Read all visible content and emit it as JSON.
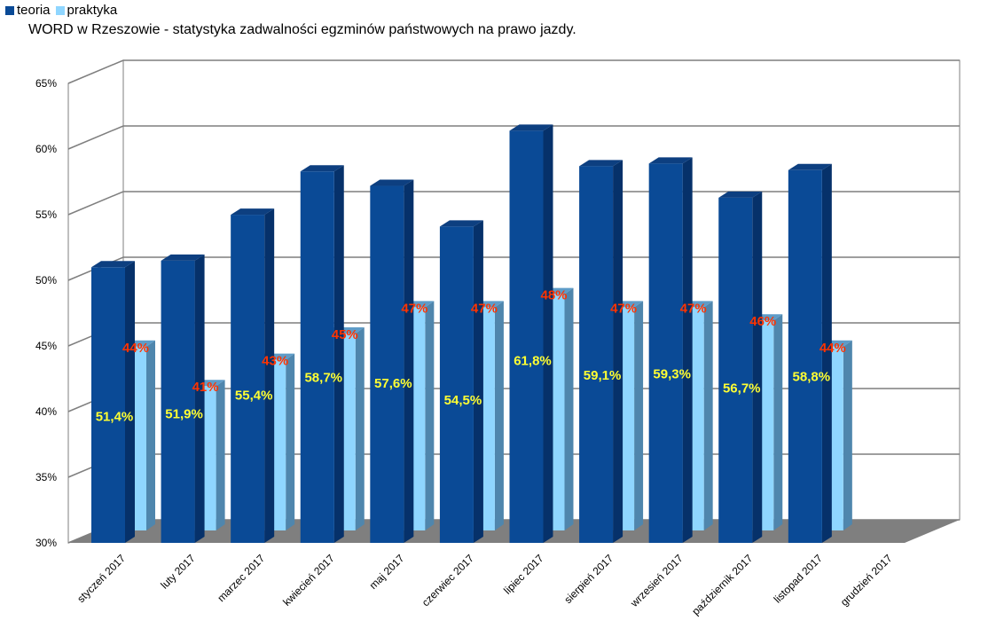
{
  "legend": {
    "teoria_label": "teoria",
    "praktyka_label": "praktyka"
  },
  "colors": {
    "teoria": "#0a4a96",
    "teoria_side": "#06316a",
    "teoria_top": "#0d3f80",
    "praktyka": "#8fd6ff",
    "praktyka_side": "#4f86ad",
    "praktyka_top": "#5e9cc8",
    "teoria_label": "#ffff33",
    "praktyka_label": "#ff3300",
    "floor": "#7f7f7f",
    "grid": "#7f7f7f"
  },
  "chart_data": {
    "type": "bar",
    "title": "WORD w Rzeszowie - statystyka zadwalności egzminów państwowych na prawo jazdy.",
    "categories": [
      "styczeń 2017",
      "luty 2017",
      "marzec 2017",
      "kwiecień 2017",
      "maj 2017",
      "czerwiec 2017",
      "lipiec 2017",
      "sierpień 2017",
      "wrzesień 2017",
      "październik 2017",
      "listopad 2017",
      "grudzień 2017"
    ],
    "series": [
      {
        "name": "teoria",
        "values": [
          51.4,
          51.9,
          55.4,
          58.7,
          57.6,
          54.5,
          61.8,
          59.1,
          59.3,
          56.7,
          58.8,
          null
        ],
        "labels": [
          "51,4%",
          "51,9%",
          "55,4%",
          "58,7%",
          "57,6%",
          "54,5%",
          "61,8%",
          "59,1%",
          "59,3%",
          "56,7%",
          "58,8%",
          null
        ]
      },
      {
        "name": "praktyka",
        "values": [
          44,
          41,
          43,
          45,
          47,
          47,
          48,
          47,
          47,
          46,
          44,
          null
        ],
        "labels": [
          "44%",
          "41%",
          "43%",
          "45%",
          "47%",
          "47%",
          "48%",
          "47%",
          "47%",
          "46%",
          "44%",
          null
        ]
      }
    ],
    "ylim": [
      30,
      65
    ],
    "yticks": [
      30,
      35,
      40,
      45,
      50,
      55,
      60,
      65
    ],
    "ytick_labels": [
      "30%",
      "35%",
      "40%",
      "45%",
      "50%",
      "55%",
      "60%",
      "65%"
    ],
    "grid": true,
    "legend_position": "top-left",
    "three_d": true
  }
}
